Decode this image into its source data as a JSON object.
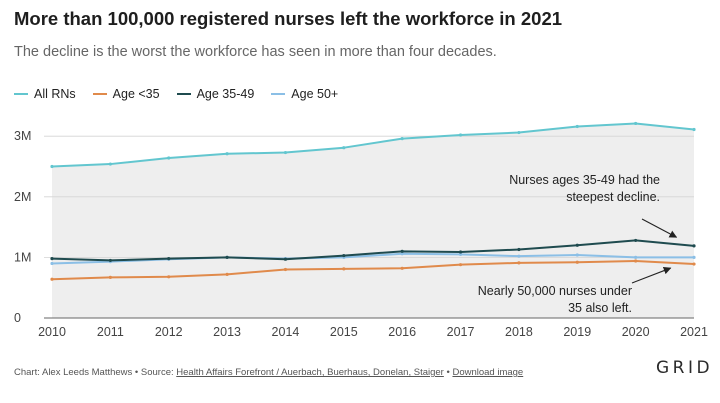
{
  "header": {
    "title": "More than 100,000 registered nurses left the workforce in 2021",
    "subtitle": "The decline is the worst the workforce has seen in more than four decades."
  },
  "footer": {
    "credit": "Chart: Alex Leeds Matthews • Source: ",
    "source_link": "Health Affairs Forefront / Auerbach, Buerhaus, Donelan, Staiger",
    "separator": " • ",
    "download_link": "Download image",
    "logo": "GRID"
  },
  "chart_data": {
    "type": "line",
    "x": [
      2010,
      2011,
      2012,
      2013,
      2014,
      2015,
      2016,
      2017,
      2018,
      2019,
      2020,
      2021
    ],
    "series": [
      {
        "name": "All RNs",
        "color": "#62c6cf",
        "values": [
          2.5,
          2.54,
          2.64,
          2.71,
          2.73,
          2.81,
          2.96,
          3.02,
          3.06,
          3.16,
          3.21,
          3.11
        ]
      },
      {
        "name": "Age <35",
        "color": "#e08a4b",
        "values": [
          0.64,
          0.67,
          0.68,
          0.72,
          0.8,
          0.81,
          0.82,
          0.88,
          0.91,
          0.92,
          0.94,
          0.89
        ]
      },
      {
        "name": "Age 35-49",
        "color": "#1f4b4f",
        "values": [
          0.98,
          0.95,
          0.98,
          1.0,
          0.97,
          1.03,
          1.1,
          1.09,
          1.13,
          1.2,
          1.28,
          1.19
        ]
      },
      {
        "name": "Age 50+",
        "color": "#8bbfe6",
        "values": [
          0.9,
          0.93,
          0.97,
          1.0,
          0.98,
          1.0,
          1.06,
          1.05,
          1.02,
          1.04,
          1.0,
          1.0
        ]
      }
    ],
    "xlim": [
      2010,
      2021
    ],
    "ylim": [
      0,
      3.3
    ],
    "yticks": [
      0,
      1,
      2,
      3
    ],
    "ytick_labels": [
      "0",
      "1M",
      "2M",
      "3M"
    ],
    "xtick_labels": [
      "2010",
      "2011",
      "2012",
      "2013",
      "2014",
      "2015",
      "2016",
      "2017",
      "2018",
      "2019",
      "2020",
      "2021"
    ],
    "legend_position": "top-left",
    "grid": "horizontal",
    "annotations": [
      {
        "id": "ann-35-49",
        "lines": [
          "Nurses ages 35-49 had the",
          "steepest decline."
        ],
        "target_x": 2020.7,
        "target_y": 1.25
      },
      {
        "id": "ann-under-35",
        "lines": [
          "Nearly 50,000 nurses under",
          "35 also left."
        ],
        "target_x": 2020.6,
        "target_y": 0.89
      }
    ]
  }
}
